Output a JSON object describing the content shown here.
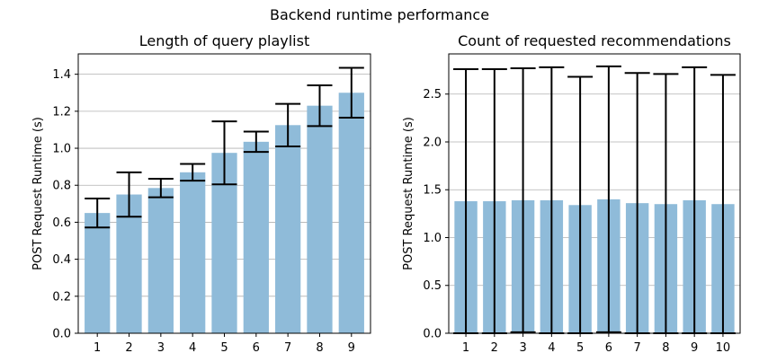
{
  "suptitle": "Backend runtime performance",
  "chart_data": [
    {
      "type": "bar",
      "title": "Length of query playlist",
      "xlabel": "",
      "ylabel": "POST Request Runtime (s)",
      "categories": [
        "1",
        "2",
        "3",
        "4",
        "5",
        "6",
        "7",
        "8",
        "9"
      ],
      "values": [
        0.65,
        0.75,
        0.785,
        0.87,
        0.975,
        1.035,
        1.125,
        1.23,
        1.3
      ],
      "error": [
        0.078,
        0.12,
        0.05,
        0.045,
        0.17,
        0.055,
        0.115,
        0.11,
        0.135
      ],
      "ylim": [
        0,
        1.51
      ],
      "yticks": [
        "0.0",
        "0.2",
        "0.4",
        "0.6",
        "0.8",
        "1.0",
        "1.2",
        "1.4"
      ],
      "grid": "y",
      "bar_color": "#8fbbd9"
    },
    {
      "type": "bar",
      "title": "Count of requested recommendations",
      "xlabel": "",
      "ylabel": "POST Request Runtime (s)",
      "categories": [
        "1",
        "2",
        "3",
        "4",
        "5",
        "6",
        "7",
        "8",
        "9",
        "10"
      ],
      "values": [
        1.38,
        1.38,
        1.39,
        1.39,
        1.34,
        1.4,
        1.36,
        1.35,
        1.39,
        1.35
      ],
      "error": [
        1.38,
        1.38,
        1.38,
        1.39,
        1.34,
        1.39,
        1.36,
        1.36,
        1.39,
        1.35
      ],
      "ylim": [
        0,
        2.92
      ],
      "yticks": [
        "0.0",
        "0.5",
        "1.0",
        "1.5",
        "2.0",
        "2.5"
      ],
      "grid": "y",
      "bar_color": "#8fbbd9"
    }
  ]
}
